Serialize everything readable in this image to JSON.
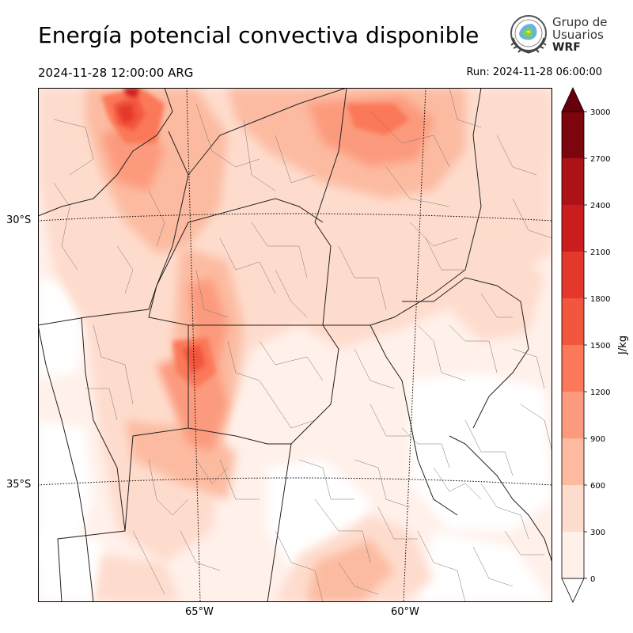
{
  "title": "Energía potencial convectiva disponible",
  "valid_time": "2024-11-28 12:00:00 ARG",
  "run_time": "Run: 2024-11-28 06:00:00",
  "logo": {
    "icon": "wrf-users-group-seal-icon",
    "line1": "Grupo de",
    "line2": "Usuarios",
    "line3": "WRF"
  },
  "map": {
    "lat_labels": [
      "30°S",
      "35°S"
    ],
    "lon_labels": [
      "65°W",
      "60°W"
    ]
  },
  "colorbar": {
    "label": "J/kg",
    "ticks": [
      "0",
      "300",
      "600",
      "900",
      "1200",
      "1500",
      "1800",
      "2100",
      "2400",
      "2700",
      "3000"
    ],
    "colors": [
      "#fff0ea",
      "#fedccd",
      "#fcbba1",
      "#fc9a7d",
      "#fb7858",
      "#f2573e",
      "#e4382c",
      "#cb1d1e",
      "#ad1217",
      "#7d060e"
    ],
    "extend": "both"
  }
}
